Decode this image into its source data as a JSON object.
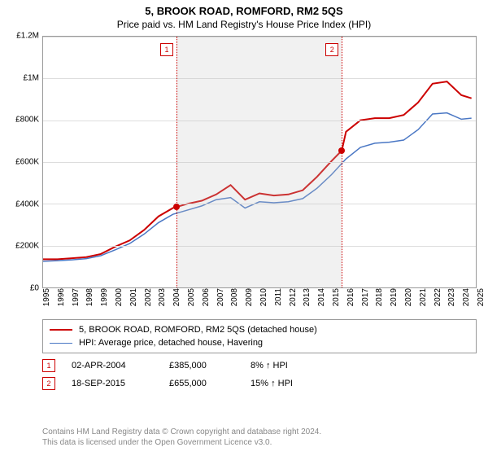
{
  "title": "5, BROOK ROAD, ROMFORD, RM2 5QS",
  "subtitle": "Price paid vs. HM Land Registry's House Price Index (HPI)",
  "chart": {
    "type": "line",
    "x_start_year": 1995,
    "x_end_year": 2025,
    "xticks": [
      "1995",
      "1996",
      "1997",
      "1998",
      "1999",
      "2000",
      "2001",
      "2002",
      "2003",
      "2004",
      "2005",
      "2006",
      "2007",
      "2008",
      "2009",
      "2010",
      "2011",
      "2012",
      "2013",
      "2014",
      "2015",
      "2016",
      "2017",
      "2018",
      "2019",
      "2020",
      "2021",
      "2022",
      "2023",
      "2024",
      "2025"
    ],
    "ylim": [
      0,
      1200000
    ],
    "yticks": [
      {
        "v": 0,
        "l": "£0"
      },
      {
        "v": 200000,
        "l": "£200K"
      },
      {
        "v": 400000,
        "l": "£400K"
      },
      {
        "v": 600000,
        "l": "£600K"
      },
      {
        "v": 800000,
        "l": "£800K"
      },
      {
        "v": 1000000,
        "l": "£1M"
      },
      {
        "v": 1200000,
        "l": "£1.2M"
      }
    ],
    "grid_color": "#dddddd",
    "border_color": "#999999",
    "shaded_band": {
      "from_year": 2004.25,
      "to_year": 2015.71,
      "fill": "#c8c8c8",
      "opacity": 0.25
    },
    "series": [
      {
        "name": "5, BROOK ROAD, ROMFORD, RM2 5QS (detached house)",
        "color": "#cc0000",
        "line_width": 2,
        "points": [
          [
            1995.0,
            135000
          ],
          [
            1996.0,
            135000
          ],
          [
            1997.0,
            140000
          ],
          [
            1998.0,
            145000
          ],
          [
            1999.0,
            160000
          ],
          [
            2000.0,
            195000
          ],
          [
            2001.0,
            225000
          ],
          [
            2002.0,
            275000
          ],
          [
            2003.0,
            340000
          ],
          [
            2004.0,
            380000
          ],
          [
            2004.25,
            385000
          ],
          [
            2005.0,
            400000
          ],
          [
            2006.0,
            415000
          ],
          [
            2007.0,
            445000
          ],
          [
            2008.0,
            490000
          ],
          [
            2009.0,
            420000
          ],
          [
            2010.0,
            450000
          ],
          [
            2011.0,
            440000
          ],
          [
            2012.0,
            445000
          ],
          [
            2013.0,
            465000
          ],
          [
            2014.0,
            530000
          ],
          [
            2015.0,
            605000
          ],
          [
            2015.71,
            655000
          ],
          [
            2016.0,
            745000
          ],
          [
            2017.0,
            800000
          ],
          [
            2018.0,
            810000
          ],
          [
            2019.0,
            810000
          ],
          [
            2020.0,
            825000
          ],
          [
            2021.0,
            885000
          ],
          [
            2022.0,
            975000
          ],
          [
            2023.0,
            985000
          ],
          [
            2024.0,
            920000
          ],
          [
            2024.7,
            905000
          ]
        ]
      },
      {
        "name": "HPI: Average price, detached house, Havering",
        "color": "#4a77c4",
        "line_width": 1.5,
        "points": [
          [
            1995.0,
            125000
          ],
          [
            1996.0,
            128000
          ],
          [
            1997.0,
            132000
          ],
          [
            1998.0,
            138000
          ],
          [
            1999.0,
            152000
          ],
          [
            2000.0,
            180000
          ],
          [
            2001.0,
            210000
          ],
          [
            2002.0,
            255000
          ],
          [
            2003.0,
            310000
          ],
          [
            2004.0,
            350000
          ],
          [
            2005.0,
            370000
          ],
          [
            2006.0,
            390000
          ],
          [
            2007.0,
            420000
          ],
          [
            2008.0,
            430000
          ],
          [
            2009.0,
            380000
          ],
          [
            2010.0,
            410000
          ],
          [
            2011.0,
            405000
          ],
          [
            2012.0,
            410000
          ],
          [
            2013.0,
            425000
          ],
          [
            2014.0,
            475000
          ],
          [
            2015.0,
            540000
          ],
          [
            2016.0,
            615000
          ],
          [
            2017.0,
            670000
          ],
          [
            2018.0,
            690000
          ],
          [
            2019.0,
            695000
          ],
          [
            2020.0,
            705000
          ],
          [
            2021.0,
            755000
          ],
          [
            2022.0,
            830000
          ],
          [
            2023.0,
            835000
          ],
          [
            2024.0,
            805000
          ],
          [
            2024.7,
            810000
          ]
        ]
      }
    ],
    "sale_markers": [
      {
        "badge": "1",
        "year": 2004.25,
        "price": 385000
      },
      {
        "badge": "2",
        "year": 2015.71,
        "price": 655000
      }
    ]
  },
  "legend": [
    {
      "color": "#cc0000",
      "width": 2,
      "label": "5, BROOK ROAD, ROMFORD, RM2 5QS (detached house)"
    },
    {
      "color": "#4a77c4",
      "width": 1.5,
      "label": "HPI: Average price, detached house, Havering"
    }
  ],
  "sales": [
    {
      "badge": "1",
      "date": "02-APR-2004",
      "price": "£385,000",
      "diff": "8% ↑ HPI"
    },
    {
      "badge": "2",
      "date": "18-SEP-2015",
      "price": "£655,000",
      "diff": "15% ↑ HPI"
    }
  ],
  "footer_line1": "Contains HM Land Registry data © Crown copyright and database right 2024.",
  "footer_line2": "This data is licensed under the Open Government Licence v3.0."
}
